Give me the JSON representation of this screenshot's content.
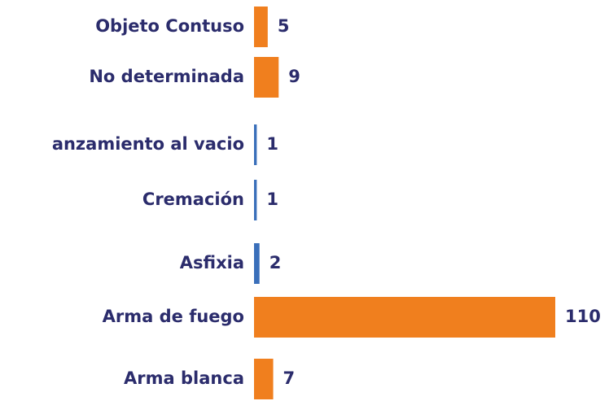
{
  "chart_data": {
    "type": "hbar",
    "categories": [
      "Objeto Contuso",
      "No determinada",
      "anzamiento al vacio",
      "Cremación",
      "Asfixia",
      "Arma de fuego",
      "Arma blanca"
    ],
    "values": [
      5,
      9,
      1,
      1,
      2,
      110,
      7
    ],
    "colors": [
      "#f07f1e",
      "#f07f1e",
      "#3a6fba",
      "#3a6fba",
      "#3a6fba",
      "#f07f1e",
      "#f07f1e"
    ]
  }
}
